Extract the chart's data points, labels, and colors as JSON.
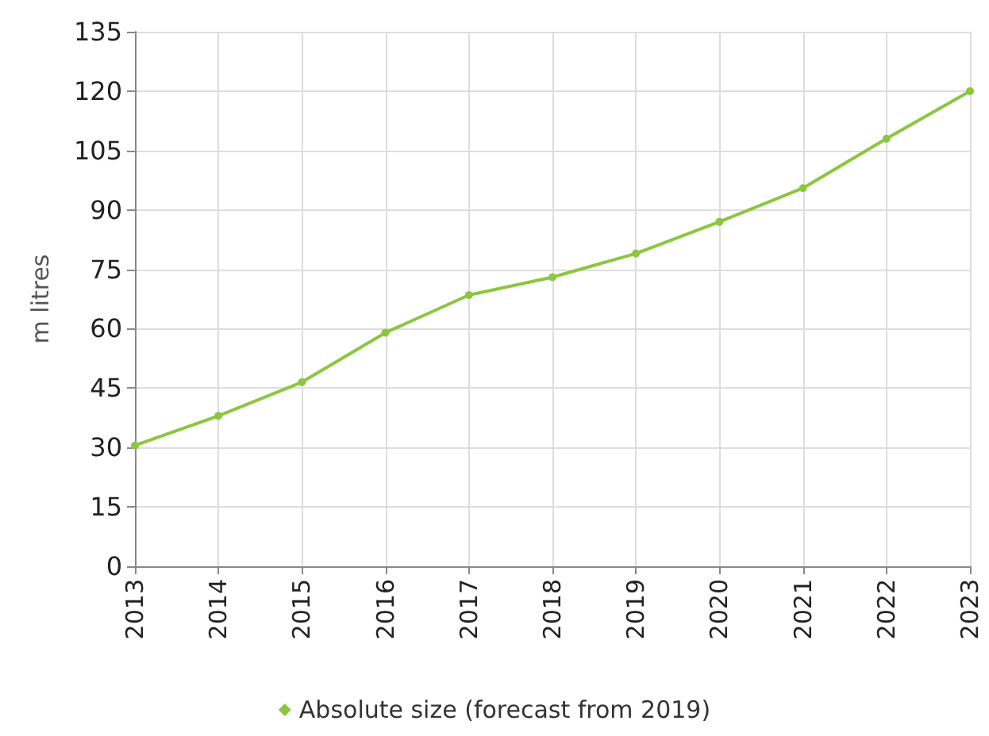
{
  "chart_data": {
    "type": "line",
    "ylabel": "m litres",
    "categories": [
      "2013",
      "2014",
      "2015",
      "2016",
      "2017",
      "2018",
      "2019",
      "2020",
      "2021",
      "2022",
      "2023"
    ],
    "series": [
      {
        "name": "Absolute size (forecast from 2019)",
        "color": "#8cc63f",
        "values": [
          30.5,
          38,
          46.5,
          59,
          68.5,
          73,
          79,
          87,
          95.5,
          108,
          120
        ]
      }
    ],
    "ylim": [
      0,
      135
    ],
    "yticks": [
      0,
      15,
      30,
      45,
      60,
      75,
      90,
      105,
      120,
      135
    ],
    "grid": true,
    "legend": "bottom",
    "marker": "circle",
    "line_style": "solid"
  }
}
